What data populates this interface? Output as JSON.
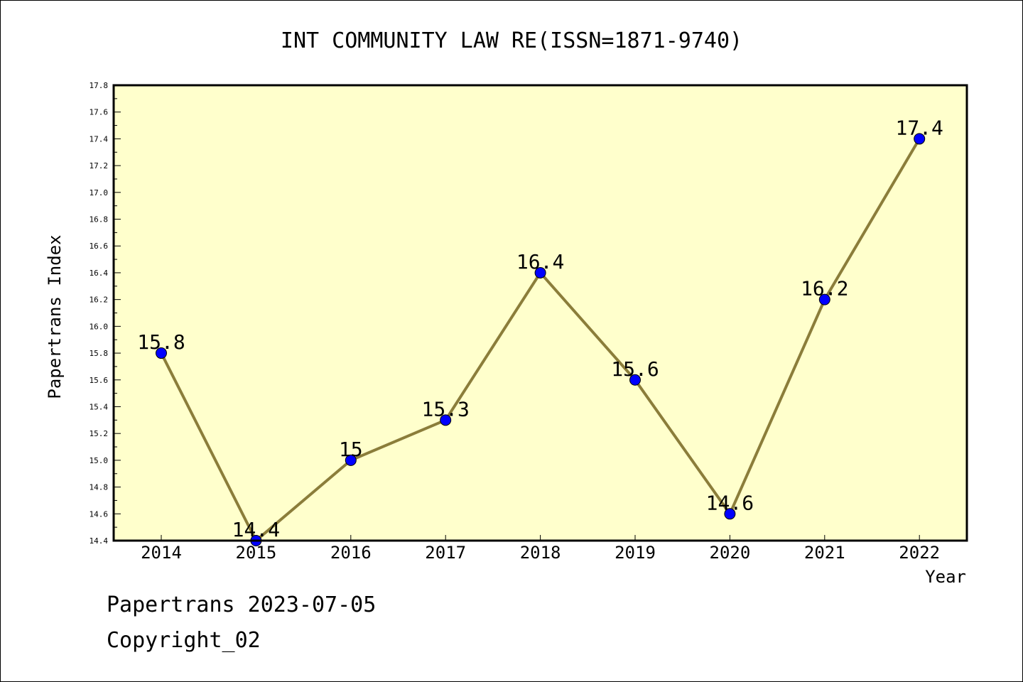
{
  "chart_data": {
    "type": "line",
    "title": "INT COMMUNITY LAW RE(ISSN=1871-9740)",
    "xlabel": "Year",
    "ylabel": "Papertrans Index",
    "categories": [
      "2014",
      "2015",
      "2016",
      "2017",
      "2018",
      "2019",
      "2020",
      "2021",
      "2022"
    ],
    "series": [
      {
        "values": [
          15.8,
          14.4,
          15.0,
          15.3,
          16.4,
          15.6,
          14.6,
          16.2,
          17.4
        ],
        "data_labels": [
          "15.8",
          "14.4",
          "15",
          "15.3",
          "16.4",
          "15.6",
          "14.6",
          "16.2",
          "17.4"
        ]
      }
    ],
    "ylim": [
      14.4,
      17.8
    ],
    "yticks": [
      "14.4",
      "14.6",
      "14.8",
      "15.0",
      "15.2",
      "15.4",
      "15.6",
      "15.8",
      "16.0",
      "16.2",
      "16.4",
      "16.6",
      "16.8",
      "17.0",
      "17.2",
      "17.4",
      "17.6",
      "17.8"
    ],
    "grid": false,
    "legend": "none",
    "colors": {
      "plot_background": "#ffffcc",
      "line": "#8b7d3a",
      "marker": "#0000ff"
    }
  },
  "footer": {
    "line1": "Papertrans 2023-07-05",
    "line2": "Copyright_02"
  }
}
